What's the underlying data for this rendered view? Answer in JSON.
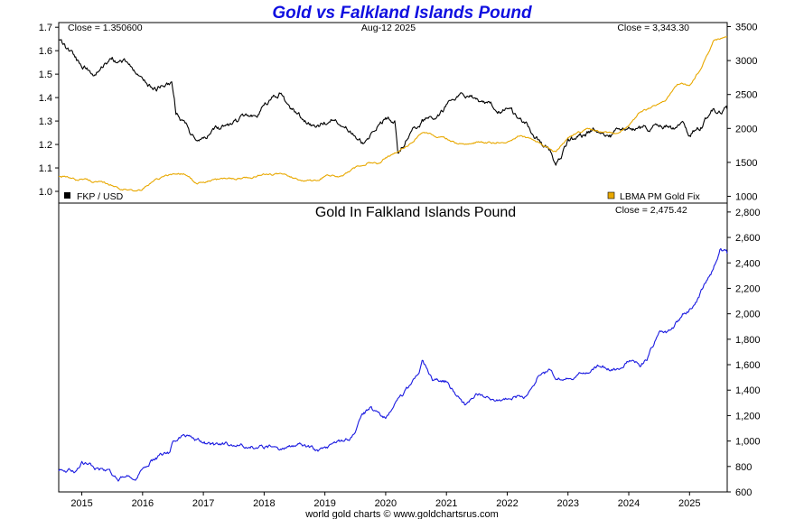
{
  "chart_data": [
    {
      "type": "line",
      "title": "Gold vs Falkland Islands Pound",
      "date_label": "Aug-12  2025",
      "x_range": [
        2014.62,
        2025.62
      ],
      "left_axis": {
        "ylim": [
          0.95,
          1.72
        ],
        "ticks": [
          "1.0",
          "1.1",
          "1.2",
          "1.3",
          "1.4",
          "1.5",
          "1.6",
          "1.7"
        ]
      },
      "right_axis": {
        "ylim": [
          900,
          3560
        ],
        "ticks": [
          "1000",
          "1500",
          "2000",
          "2500",
          "3000",
          "3500"
        ]
      },
      "close_left": "Close = 1.350600",
      "close_right": "Close = 3,343.30",
      "series": [
        {
          "name": "FKP / USD",
          "axis": "left",
          "color": "#000000",
          "x": [
            2014.62,
            2014.8,
            2015.0,
            2015.2,
            2015.35,
            2015.5,
            2015.7,
            2015.9,
            2016.0,
            2016.2,
            2016.4,
            2016.48,
            2016.55,
            2016.7,
            2016.8,
            2017.0,
            2017.2,
            2017.5,
            2017.7,
            2017.9,
            2018.1,
            2018.25,
            2018.5,
            2018.7,
            2018.9,
            2019.1,
            2019.3,
            2019.5,
            2019.6,
            2019.7,
            2019.9,
            2020.0,
            2020.15,
            2020.2,
            2020.4,
            2020.6,
            2020.8,
            2021.0,
            2021.2,
            2021.4,
            2021.6,
            2021.9,
            2022.0,
            2022.2,
            2022.4,
            2022.6,
            2022.7,
            2022.8,
            2022.9,
            2023.0,
            2023.3,
            2023.5,
            2023.7,
            2023.9,
            2024.1,
            2024.3,
            2024.5,
            2024.7,
            2024.9,
            2025.0,
            2025.2,
            2025.4,
            2025.5,
            2025.62
          ],
          "y": [
            1.64,
            1.59,
            1.53,
            1.5,
            1.53,
            1.57,
            1.55,
            1.51,
            1.47,
            1.43,
            1.46,
            1.47,
            1.33,
            1.29,
            1.24,
            1.23,
            1.26,
            1.29,
            1.32,
            1.34,
            1.4,
            1.42,
            1.34,
            1.3,
            1.28,
            1.3,
            1.29,
            1.25,
            1.22,
            1.22,
            1.3,
            1.31,
            1.29,
            1.16,
            1.24,
            1.3,
            1.31,
            1.37,
            1.41,
            1.41,
            1.38,
            1.34,
            1.35,
            1.31,
            1.26,
            1.19,
            1.17,
            1.11,
            1.15,
            1.21,
            1.24,
            1.27,
            1.24,
            1.27,
            1.27,
            1.27,
            1.28,
            1.27,
            1.27,
            1.24,
            1.28,
            1.35,
            1.34,
            1.35
          ]
        },
        {
          "name": "LBMA PM Gold Fix",
          "axis": "right",
          "color": "#e8a800",
          "x": [
            2014.62,
            2014.9,
            2015.0,
            2015.3,
            2015.6,
            2015.9,
            2016.0,
            2016.2,
            2016.5,
            2016.7,
            2016.9,
            2017.0,
            2017.3,
            2017.6,
            2017.8,
            2018.0,
            2018.3,
            2018.6,
            2018.9,
            2019.0,
            2019.3,
            2019.5,
            2019.7,
            2019.9,
            2020.0,
            2020.2,
            2020.45,
            2020.6,
            2020.8,
            2021.0,
            2021.2,
            2021.5,
            2021.8,
            2022.0,
            2022.2,
            2022.5,
            2022.8,
            2023.0,
            2023.3,
            2023.5,
            2023.8,
            2024.0,
            2024.2,
            2024.4,
            2024.6,
            2024.8,
            2025.0,
            2025.2,
            2025.4,
            2025.62
          ],
          "y": [
            1300,
            1240,
            1260,
            1200,
            1130,
            1070,
            1100,
            1240,
            1330,
            1340,
            1180,
            1200,
            1250,
            1270,
            1280,
            1330,
            1320,
            1250,
            1220,
            1290,
            1300,
            1410,
            1500,
            1480,
            1560,
            1650,
            1820,
            1950,
            1900,
            1850,
            1770,
            1800,
            1780,
            1820,
            1900,
            1800,
            1650,
            1860,
            1990,
            1950,
            1910,
            2060,
            2250,
            2330,
            2400,
            2650,
            2640,
            2900,
            3300,
            3350
          ]
        }
      ]
    },
    {
      "type": "line",
      "title": "Gold In Falkland Islands Pound",
      "close_label": "Close = 2,475.42",
      "x_range": [
        2014.62,
        2025.62
      ],
      "ylim": [
        600,
        2870
      ],
      "y_ticks": [
        "600",
        "800",
        "1,000",
        "1,200",
        "1,400",
        "1,600",
        "1,800",
        "2,000",
        "2,200",
        "2,400",
        "2,600",
        "2,800"
      ],
      "x_ticks": [
        "2015",
        "2016",
        "2017",
        "2018",
        "2019",
        "2020",
        "2021",
        "2022",
        "2023",
        "2024",
        "2025"
      ],
      "series": [
        {
          "color": "#1a1ae0",
          "x": [
            2014.62,
            2014.9,
            2015.0,
            2015.2,
            2015.4,
            2015.6,
            2015.9,
            2016.0,
            2016.2,
            2016.45,
            2016.5,
            2016.6,
            2016.75,
            2016.9,
            2017.2,
            2017.5,
            2017.8,
            2018.0,
            2018.3,
            2018.6,
            2018.9,
            2019.1,
            2019.4,
            2019.5,
            2019.6,
            2019.75,
            2019.9,
            2020.0,
            2020.2,
            2020.4,
            2020.55,
            2020.6,
            2020.8,
            2021.0,
            2021.3,
            2021.5,
            2021.7,
            2021.9,
            2022.1,
            2022.3,
            2022.5,
            2022.7,
            2022.8,
            2023.0,
            2023.3,
            2023.5,
            2023.8,
            2024.0,
            2024.2,
            2024.3,
            2024.5,
            2024.7,
            2024.9,
            2025.1,
            2025.25,
            2025.35,
            2025.5,
            2025.62
          ],
          "y": [
            770,
            760,
            830,
            790,
            760,
            710,
            730,
            790,
            860,
            900,
            1000,
            1030,
            1040,
            1000,
            960,
            980,
            960,
            960,
            940,
            960,
            920,
            960,
            1010,
            1080,
            1180,
            1260,
            1200,
            1180,
            1330,
            1430,
            1530,
            1620,
            1470,
            1460,
            1280,
            1380,
            1340,
            1300,
            1340,
            1350,
            1500,
            1550,
            1480,
            1500,
            1530,
            1590,
            1570,
            1640,
            1600,
            1650,
            1850,
            1860,
            2000,
            2080,
            2220,
            2300,
            2500,
            2475
          ]
        }
      ]
    }
  ],
  "legend": {
    "fkp_label": "FKP / USD",
    "gold_label": "LBMA PM Gold Fix"
  },
  "footer": {
    "credit": "world gold charts © www.goldchartsrus.com"
  }
}
